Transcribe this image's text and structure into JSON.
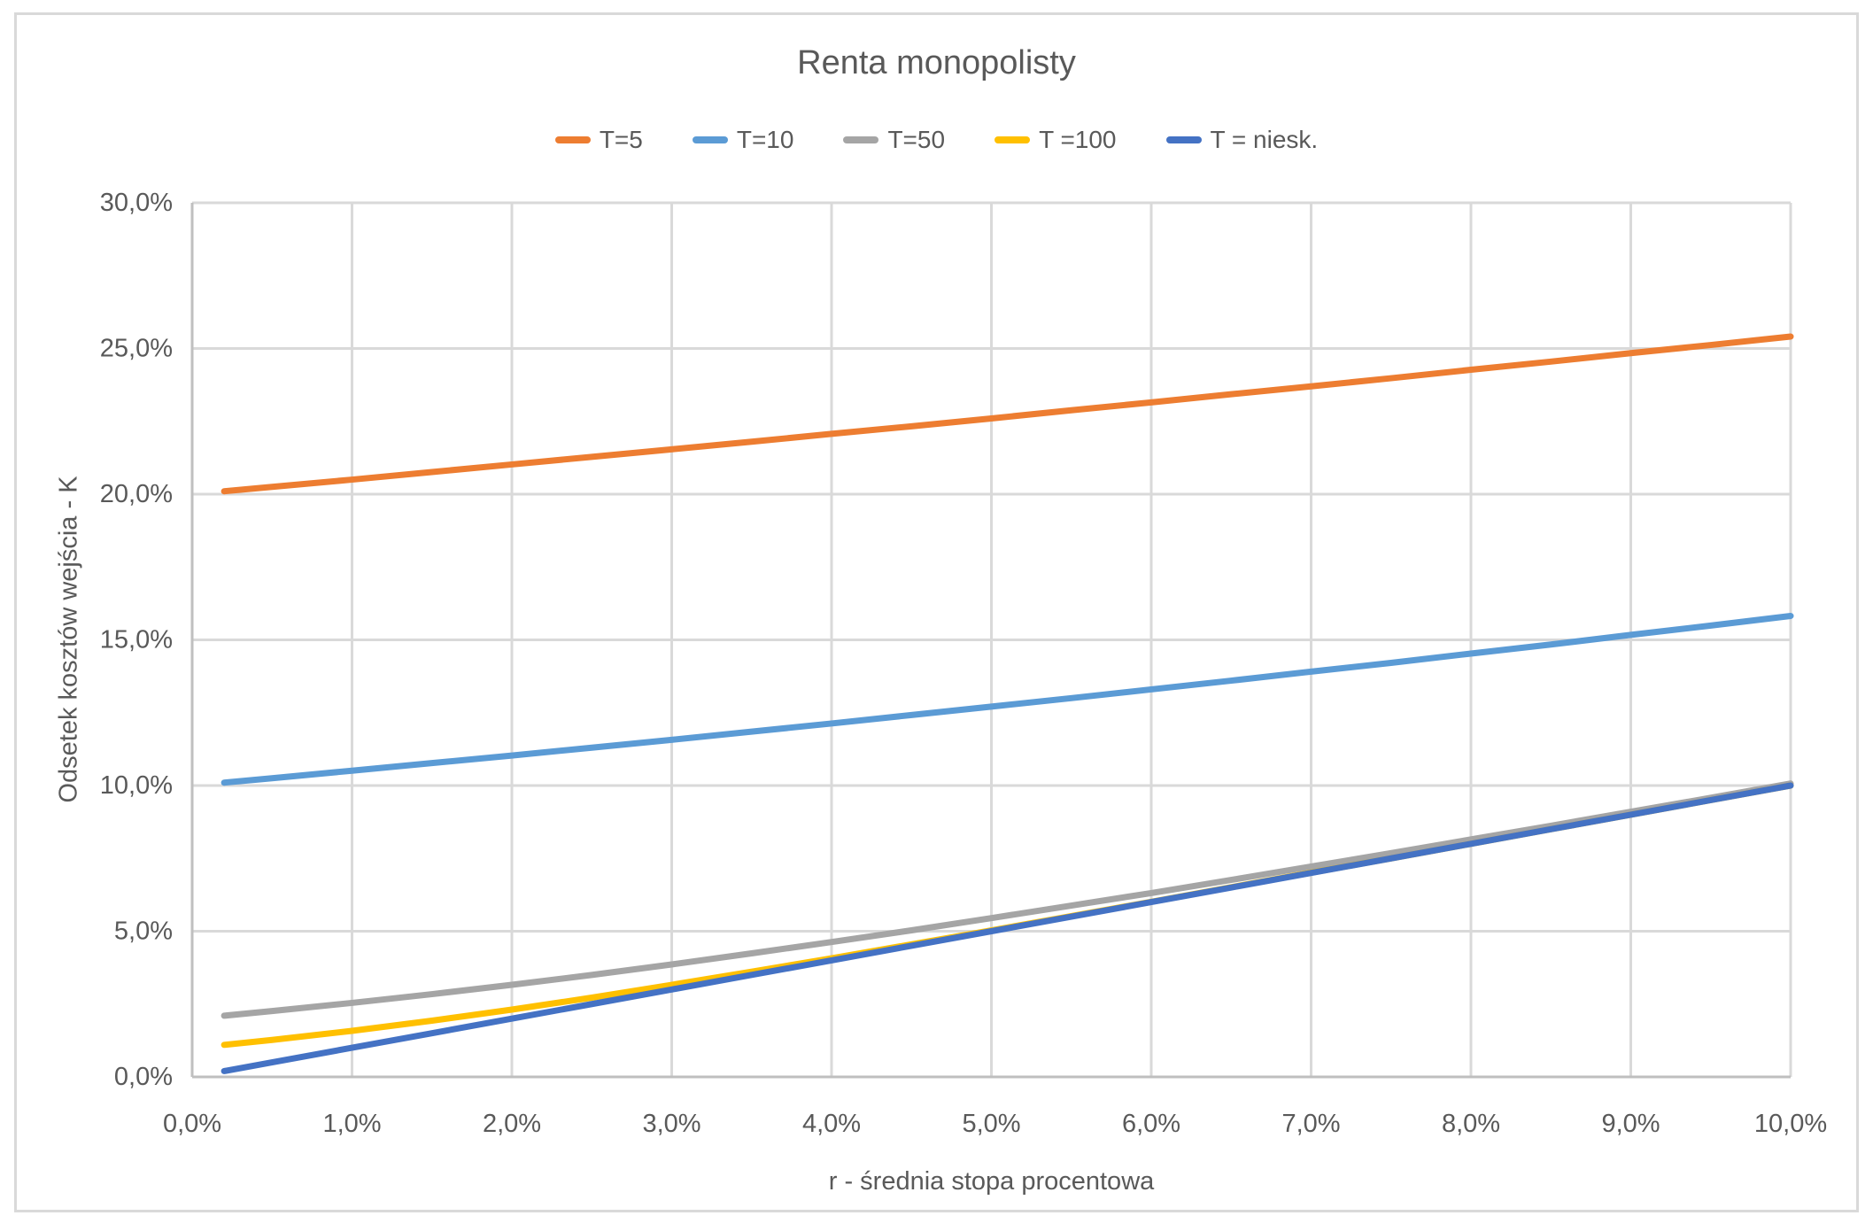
{
  "chart_data": {
    "type": "line",
    "title": "Renta monopolisty",
    "xlabel": "r - średnia stopa procentowa",
    "ylabel": "Odsetek kosztów wejścia - K",
    "xlim": [
      0,
      10
    ],
    "ylim": [
      0,
      30
    ],
    "grid": "on",
    "legend_position": "top-center",
    "x_percent": [
      0.2,
      0.5,
      1,
      1.5,
      2,
      2.5,
      3,
      3.5,
      4,
      4.5,
      5,
      5.5,
      6,
      6.5,
      7,
      7.5,
      8,
      8.5,
      9,
      9.5,
      10
    ],
    "x_ticks": [
      {
        "value": 0,
        "label": "0,0%"
      },
      {
        "value": 1,
        "label": "1,0%"
      },
      {
        "value": 2,
        "label": "2,0%"
      },
      {
        "value": 3,
        "label": "3,0%"
      },
      {
        "value": 4,
        "label": "4,0%"
      },
      {
        "value": 5,
        "label": "5,0%"
      },
      {
        "value": 6,
        "label": "6,0%"
      },
      {
        "value": 7,
        "label": "7,0%"
      },
      {
        "value": 8,
        "label": "8,0%"
      },
      {
        "value": 9,
        "label": "9,0%"
      },
      {
        "value": 10,
        "label": "10,0%"
      }
    ],
    "y_ticks": [
      {
        "value": 0,
        "label": "0,0%"
      },
      {
        "value": 5,
        "label": "5,0%"
      },
      {
        "value": 10,
        "label": "10,0%"
      },
      {
        "value": 15,
        "label": "15,0%"
      },
      {
        "value": 20,
        "label": "20,0%"
      },
      {
        "value": 25,
        "label": "25,0%"
      },
      {
        "value": 30,
        "label": "30,0%"
      }
    ],
    "series": [
      {
        "name": "T=5",
        "color": "#ED7D31",
        "values": [
          20.1,
          20.25,
          20.5,
          20.76,
          21.02,
          21.28,
          21.54,
          21.8,
          22.07,
          22.33,
          22.6,
          22.88,
          23.15,
          23.43,
          23.7,
          23.98,
          24.27,
          24.55,
          24.84,
          25.12,
          25.41
        ]
      },
      {
        "name": "T=10",
        "color": "#5B9BD5",
        "values": [
          10.1,
          10.25,
          10.51,
          10.77,
          11.03,
          11.3,
          11.57,
          11.85,
          12.13,
          12.42,
          12.71,
          13.0,
          13.3,
          13.6,
          13.91,
          14.21,
          14.53,
          14.84,
          15.17,
          15.49,
          15.82
        ]
      },
      {
        "name": "T=50",
        "color": "#A5A5A5",
        "values": [
          2.1,
          2.26,
          2.54,
          2.84,
          3.16,
          3.5,
          3.86,
          4.24,
          4.63,
          5.03,
          5.45,
          5.88,
          6.31,
          6.76,
          7.22,
          7.68,
          8.15,
          8.62,
          9.1,
          9.58,
          10.07
        ]
      },
      {
        "name": "T =100",
        "color": "#FFC000",
        "values": [
          1.1,
          1.27,
          1.58,
          1.93,
          2.31,
          2.72,
          3.16,
          3.61,
          4.07,
          4.55,
          5.03,
          5.52,
          6.01,
          6.51,
          7.01,
          7.5,
          8.0,
          8.5,
          9.0,
          9.5,
          10.0
        ]
      },
      {
        "name": "T = niesk.",
        "color": "#4472C4",
        "values": [
          0.2,
          0.5,
          1.0,
          1.5,
          2.0,
          2.5,
          3.0,
          3.5,
          4.0,
          4.5,
          5.0,
          5.5,
          6.0,
          6.5,
          7.0,
          7.5,
          8.0,
          8.5,
          9.0,
          9.5,
          10.0
        ]
      }
    ],
    "colors": {
      "text": "#595959",
      "gridline": "#D9D9D9",
      "axis_line": "#BFBFBF",
      "chart_border": "#D9D9D9",
      "background": "#FFFFFF"
    }
  }
}
